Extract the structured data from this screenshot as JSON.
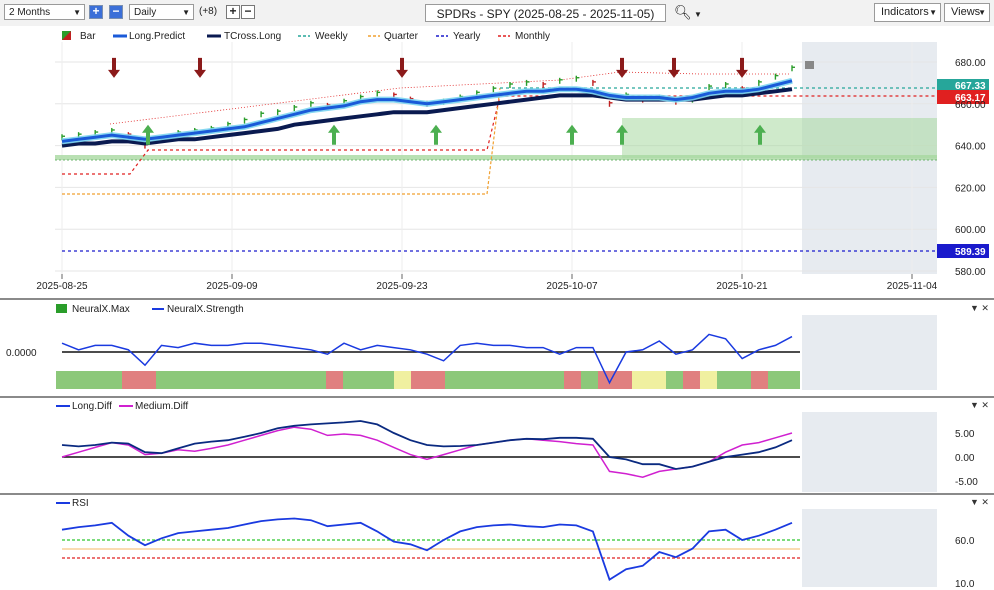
{
  "toolbar": {
    "range": "2 Months",
    "interval": "Daily",
    "offset": "(+8)",
    "title": "SPDRs - SPY (2025-08-25 - 2025-11-05)",
    "indicators": "Indicators",
    "views": "Views"
  },
  "price_panel": {
    "legend": [
      "Bar",
      "Long.Predict",
      "TCross.Long",
      "Weekly",
      "Quarter",
      "Yearly",
      "Monthly"
    ],
    "y_ticks": [
      "680.00",
      "660.00",
      "640.00",
      "620.00",
      "600.00",
      "580.00"
    ],
    "x_ticks": [
      "2025-08-25",
      "2025-09-09",
      "2025-09-23",
      "2025-10-07",
      "2025-10-21",
      "2025-11-04"
    ],
    "labels": {
      "weekly": "667.33",
      "monthly": "663.17",
      "yearly": "589.39"
    },
    "colors": {
      "weekly": "#26a69a",
      "monthly": "#e02020",
      "yearly": "#1a1acc",
      "quarter": "#f0a030"
    }
  },
  "neural_panel": {
    "legend": [
      "NeuralX.Max",
      "NeuralX.Strength"
    ],
    "y_ticks": [
      "0.0000"
    ]
  },
  "diff_panel": {
    "legend": [
      "Long.Diff",
      "Medium.Diff"
    ],
    "y_ticks": [
      "5.00",
      "0.00",
      "-5.00"
    ]
  },
  "rsi_panel": {
    "legend": [
      "RSI"
    ],
    "y_ticks": [
      "60.0",
      "10.0"
    ]
  },
  "chart_data": {
    "type": "line",
    "x": [
      "2025-08-25",
      "2025-08-26",
      "2025-08-27",
      "2025-08-28",
      "2025-08-29",
      "2025-09-02",
      "2025-09-03",
      "2025-09-04",
      "2025-09-05",
      "2025-09-08",
      "2025-09-09",
      "2025-09-10",
      "2025-09-11",
      "2025-09-12",
      "2025-09-15",
      "2025-09-16",
      "2025-09-17",
      "2025-09-18",
      "2025-09-19",
      "2025-09-22",
      "2025-09-23",
      "2025-09-24",
      "2025-09-25",
      "2025-09-26",
      "2025-09-29",
      "2025-09-30",
      "2025-10-01",
      "2025-10-02",
      "2025-10-03",
      "2025-10-06",
      "2025-10-07",
      "2025-10-08",
      "2025-10-09",
      "2025-10-10",
      "2025-10-13",
      "2025-10-14",
      "2025-10-15",
      "2025-10-16",
      "2025-10-17",
      "2025-10-20",
      "2025-10-21",
      "2025-10-22",
      "2025-10-23",
      "2025-10-24",
      "2025-10-27"
    ],
    "series": [
      {
        "name": "Bar",
        "values": [
          644,
          645,
          646,
          647,
          645,
          640,
          643,
          646,
          647,
          648,
          650,
          652,
          655,
          656,
          658,
          660,
          659,
          661,
          663,
          665,
          664,
          662,
          660,
          661,
          663,
          665,
          667,
          669,
          670,
          669,
          671,
          672,
          670,
          660,
          664,
          662,
          663,
          661,
          662,
          668,
          669,
          667,
          670,
          673,
          677
        ]
      },
      {
        "name": "Long.Predict",
        "values": [
          642,
          643,
          644,
          645,
          644,
          643,
          644,
          645,
          646,
          647,
          648,
          649,
          651,
          653,
          655,
          657,
          658,
          659,
          661,
          662,
          662,
          661,
          660,
          661,
          662,
          663,
          664,
          665,
          666,
          666,
          667,
          667,
          666,
          664,
          663,
          663,
          663,
          662,
          663,
          665,
          666,
          666,
          667,
          669,
          671
        ]
      },
      {
        "name": "TCross.Long",
        "values": [
          640,
          641,
          641,
          642,
          642,
          641,
          642,
          643,
          643,
          644,
          645,
          646,
          647,
          648,
          650,
          651,
          652,
          653,
          654,
          655,
          656,
          656,
          656,
          657,
          658,
          659,
          660,
          661,
          662,
          663,
          664,
          664,
          664,
          663,
          662,
          662,
          662,
          662,
          662,
          663,
          664,
          664,
          665,
          666,
          667
        ]
      },
      {
        "name": "NeuralX.Strength",
        "values": [
          0.4,
          0.1,
          0.3,
          0.3,
          0.1,
          -0.6,
          0.3,
          0.2,
          0.4,
          0.3,
          0.3,
          0.4,
          0.4,
          0.3,
          0.2,
          0.1,
          -0.1,
          0.4,
          0.1,
          0.3,
          0.2,
          0.1,
          -0.1,
          -0.4,
          0.3,
          0.4,
          0.3,
          0.3,
          0.2,
          0.2,
          -0.1,
          0.2,
          0.2,
          -1.4,
          0.0,
          0.1,
          0.5,
          -0.1,
          0.1,
          0.8,
          0.6,
          -0.3,
          0.1,
          0.3,
          0.7
        ]
      },
      {
        "name": "Long.Diff",
        "values": [
          2.5,
          2.2,
          2.5,
          3.0,
          2.8,
          1.0,
          0.8,
          1.8,
          2.8,
          3.2,
          3.5,
          4.2,
          5.0,
          6.0,
          6.5,
          6.8,
          7.0,
          7.2,
          7.5,
          6.8,
          5.0,
          3.5,
          2.5,
          2.2,
          2.3,
          2.5,
          3.0,
          3.5,
          3.8,
          3.7,
          4.0,
          4.0,
          3.8,
          0.0,
          -0.5,
          -1.5,
          -1.5,
          -2.5,
          -2.0,
          -1.0,
          0.0,
          0.5,
          1.0,
          2.0,
          3.5
        ]
      },
      {
        "name": "Medium.Diff",
        "values": [
          0.0,
          1.0,
          2.0,
          3.0,
          2.5,
          0.5,
          0.8,
          1.5,
          1.2,
          1.8,
          2.5,
          3.5,
          4.5,
          5.5,
          6.2,
          5.8,
          4.5,
          4.8,
          4.5,
          3.5,
          2.0,
          0.5,
          -0.5,
          0.5,
          1.5,
          2.5,
          3.0,
          3.5,
          3.8,
          3.5,
          3.2,
          2.8,
          2.5,
          -3.0,
          -3.5,
          -4.2,
          -3.0,
          -2.5,
          -2.0,
          -1.0,
          1.0,
          2.5,
          3.0,
          4.0,
          5.0
        ]
      },
      {
        "name": "RSI",
        "values": [
          72,
          75,
          77,
          80,
          65,
          54,
          62,
          68,
          70,
          72,
          74,
          78,
          82,
          84,
          85,
          83,
          76,
          78,
          80,
          70,
          58,
          55,
          48,
          60,
          70,
          75,
          77,
          78,
          76,
          75,
          78,
          77,
          70,
          14,
          26,
          30,
          46,
          40,
          50,
          70,
          72,
          60,
          65,
          72,
          80
        ]
      }
    ]
  }
}
